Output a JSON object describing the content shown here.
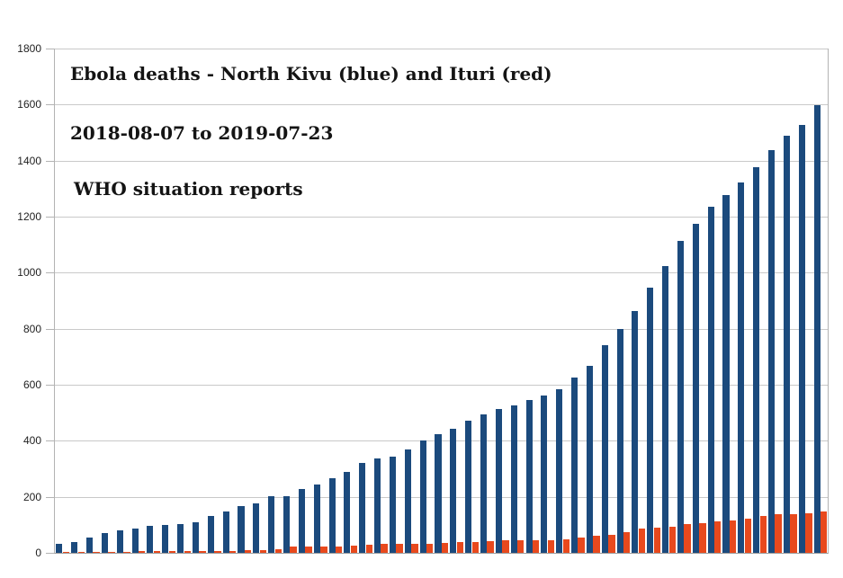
{
  "titles": {
    "line1": "Ebola deaths - North Kivu (blue) and Ituri (red)",
    "line2": "2018-08-07 to 2019-07-23",
    "line3": "WHO situation reports"
  },
  "chart_data": {
    "type": "bar",
    "title": "Ebola deaths - North Kivu (blue) and Ituri (red)",
    "subtitle": "2018-08-07 to 2019-07-23",
    "source": "WHO situation reports",
    "x_description": "51 weekly WHO situation reports from 2018-08-07 to 2019-07-23 (no x-axis labels shown)",
    "ylim": [
      0,
      1800
    ],
    "ytick_interval": 200,
    "yticks": [
      0,
      200,
      400,
      600,
      800,
      1000,
      1200,
      1400,
      1600,
      1800
    ],
    "grid": true,
    "legend_position": "none (series identified in title text)",
    "colors": {
      "north_kivu": "#1b4a7d",
      "ituri": "#e8491d",
      "grid": "#c9c9c9",
      "axis": "#b3b3b3",
      "text": "#141414"
    },
    "series": [
      {
        "name": "North Kivu",
        "color_key": "north_kivu",
        "values": [
          32,
          40,
          56,
          72,
          80,
          88,
          95,
          98,
          103,
          108,
          132,
          147,
          167,
          178,
          201,
          203,
          228,
          245,
          265,
          290,
          322,
          336,
          343,
          368,
          400,
          423,
          444,
          471,
          493,
          514,
          527,
          545,
          560,
          584,
          625,
          666,
          742,
          800,
          864,
          948,
          1022,
          1113,
          1175,
          1235,
          1277,
          1322,
          1378,
          1437,
          1490,
          1527,
          1598
        ]
      },
      {
        "name": "Ituri",
        "color_key": "ituri",
        "values": [
          2,
          3,
          3,
          4,
          4,
          5,
          5,
          6,
          6,
          7,
          7,
          8,
          9,
          11,
          13,
          21,
          22,
          23,
          23,
          25,
          30,
          32,
          33,
          33,
          33,
          34,
          37,
          38,
          41,
          44,
          44,
          45,
          46,
          49,
          53,
          61,
          64,
          73,
          86,
          91,
          94,
          102,
          105,
          112,
          116,
          123,
          130,
          137,
          139,
          142,
          149
        ]
      }
    ]
  }
}
